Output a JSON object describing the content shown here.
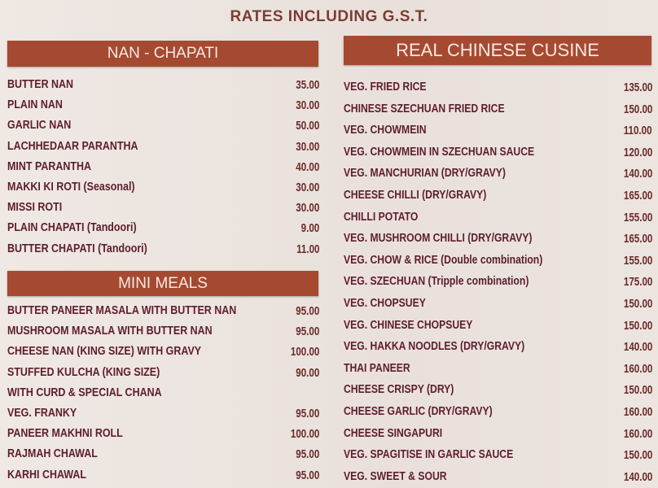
{
  "header": {
    "title": "RATES INCLUDING G.S.T."
  },
  "sections": [
    {
      "title": "NAN - CHAPATI",
      "items": [
        {
          "name": "BUTTER NAN",
          "price": "35.00"
        },
        {
          "name": "PLAIN NAN",
          "price": "30.00"
        },
        {
          "name": "GARLIC NAN",
          "price": "50.00"
        },
        {
          "name": "LACHHEDAAR PARANTHA",
          "price": "30.00"
        },
        {
          "name": "MINT PARANTHA",
          "price": "40.00"
        },
        {
          "name": "MAKKI KI ROTI (Seasonal)",
          "price": "30.00"
        },
        {
          "name": "MISSI ROTI",
          "price": "30.00"
        },
        {
          "name": "PLAIN CHAPATI (Tandoori)",
          "price": "9.00"
        },
        {
          "name": "BUTTER CHAPATI (Tandoori)",
          "price": "11.00"
        }
      ]
    },
    {
      "title": "MINI MEALS",
      "items": [
        {
          "name": "BUTTER PANEER MASALA WITH BUTTER NAN",
          "price": "95.00"
        },
        {
          "name": "MUSHROOM MASALA WITH BUTTER NAN",
          "price": "95.00"
        },
        {
          "name": "CHEESE NAN (KING SIZE) WITH GRAVY",
          "price": "100.00"
        },
        {
          "name": "STUFFED KULCHA (KING SIZE)",
          "price": "90.00"
        },
        {
          "name": "WITH CURD & SPECIAL CHANA"
        },
        {
          "name": "VEG. FRANKY",
          "price": "95.00"
        },
        {
          "name": "PANEER MAKHNI ROLL",
          "price": "100.00"
        },
        {
          "name": "RAJMAH CHAWAL",
          "price": "95.00"
        },
        {
          "name": "KARHI CHAWAL",
          "price": "95.00"
        }
      ]
    },
    {
      "title": "REAL CHINESE CUSINE",
      "items": [
        {
          "name": "VEG. FRIED RICE",
          "price": "135.00"
        },
        {
          "name": "CHINESE SZECHUAN FRIED RICE",
          "price": "150.00"
        },
        {
          "name": "VEG. CHOWMEIN",
          "price": "110.00"
        },
        {
          "name": "VEG. CHOWMEIN IN SZECHUAN SAUCE",
          "price": "120.00"
        },
        {
          "name": "VEG. MANCHURIAN (DRY/GRAVY)",
          "price": "140.00"
        },
        {
          "name": "CHEESE CHILLI (DRY/GRAVY)",
          "price": "165.00"
        },
        {
          "name": "CHILLI POTATO",
          "price": "155.00"
        },
        {
          "name": "VEG. MUSHROOM CHILLI (DRY/GRAVY)",
          "price": "165.00"
        },
        {
          "name": "VEG. CHOW & RICE (Double combination)",
          "price": "155.00"
        },
        {
          "name": "VEG. SZECHUAN (Tripple combination)",
          "price": "175.00"
        },
        {
          "name": "VEG. CHOPSUEY",
          "price": "150.00"
        },
        {
          "name": "VEG. CHINESE CHOPSUEY",
          "price": "150.00"
        },
        {
          "name": "VEG. HAKKA NOODLES (DRY/GRAVY)",
          "price": "140.00"
        },
        {
          "name": "THAI PANEER",
          "price": "160.00"
        },
        {
          "name": "CHEESE CRISPY (DRY)",
          "price": "150.00"
        },
        {
          "name": "CHEESE GARLIC (DRY/GRAVY)",
          "price": "160.00"
        },
        {
          "name": "CHEESE SINGAPURI",
          "price": "160.00"
        },
        {
          "name": "VEG. SPAGITISE IN GARLIC SAUCE",
          "price": "150.00"
        },
        {
          "name": "VEG. SWEET & SOUR",
          "price": "140.00"
        }
      ]
    }
  ]
}
